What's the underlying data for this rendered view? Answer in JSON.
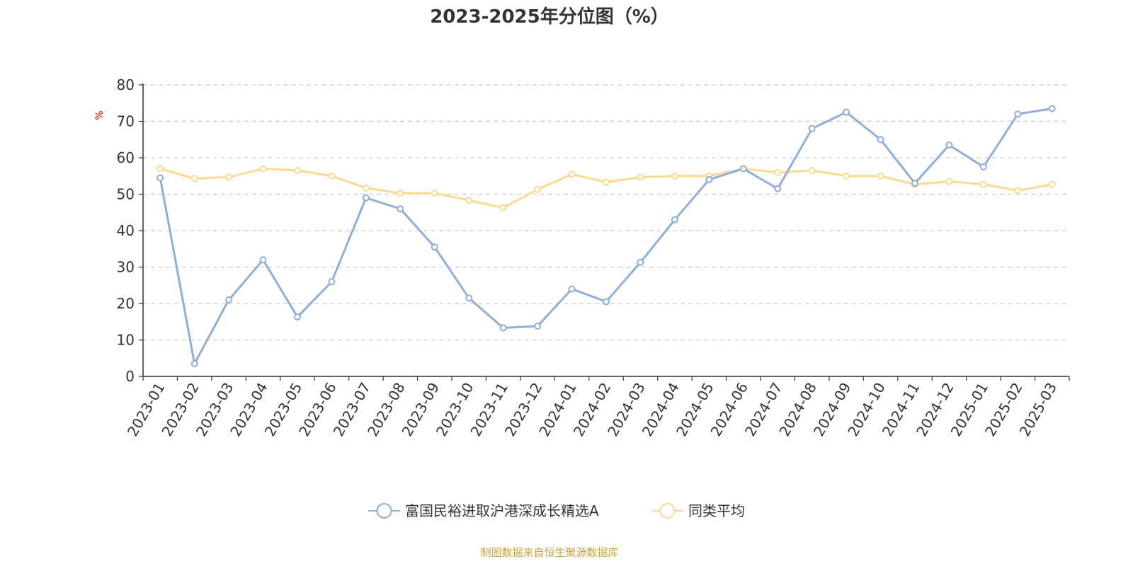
{
  "chart_data": {
    "type": "line",
    "title": "2023-2025年分位图（%）",
    "y_unit": "%",
    "ylim": [
      0,
      80
    ],
    "yticks": [
      0,
      10,
      20,
      30,
      40,
      50,
      60,
      70,
      80
    ],
    "grid": true,
    "legend_position": "bottom",
    "categories": [
      "2023-01",
      "2023-02",
      "2023-03",
      "2023-04",
      "2023-05",
      "2023-06",
      "2023-07",
      "2023-08",
      "2023-09",
      "2023-10",
      "2023-11",
      "2023-12",
      "2024-01",
      "2024-02",
      "2024-03",
      "2024-04",
      "2024-05",
      "2024-06",
      "2024-07",
      "2024-08",
      "2024-09",
      "2024-10",
      "2024-11",
      "2024-12",
      "2025-01",
      "2025-02",
      "2025-03"
    ],
    "series": [
      {
        "name": "富国民裕进取沪港深成长精选A",
        "color": "#8eaedb",
        "values": [
          54.5,
          3.5,
          21.0,
          32.0,
          16.3,
          26.0,
          49.0,
          46.0,
          35.5,
          21.5,
          13.3,
          13.8,
          24.0,
          20.5,
          31.3,
          43.0,
          54.0,
          57.0,
          51.5,
          68.0,
          72.5,
          65.0,
          53.0,
          63.5,
          57.5,
          72.0,
          73.5
        ]
      },
      {
        "name": "同类平均",
        "color": "#fbd98f",
        "values": [
          57.0,
          54.3,
          54.7,
          57.0,
          56.5,
          55.0,
          51.7,
          50.3,
          50.3,
          48.3,
          46.3,
          51.3,
          55.5,
          53.3,
          54.7,
          55.0,
          55.0,
          57.0,
          56.0,
          56.5,
          55.0,
          55.0,
          52.7,
          53.5,
          52.7,
          51.0,
          52.7
        ]
      }
    ]
  },
  "footer": {
    "source": "制图数据来自恒生聚源数据库"
  }
}
